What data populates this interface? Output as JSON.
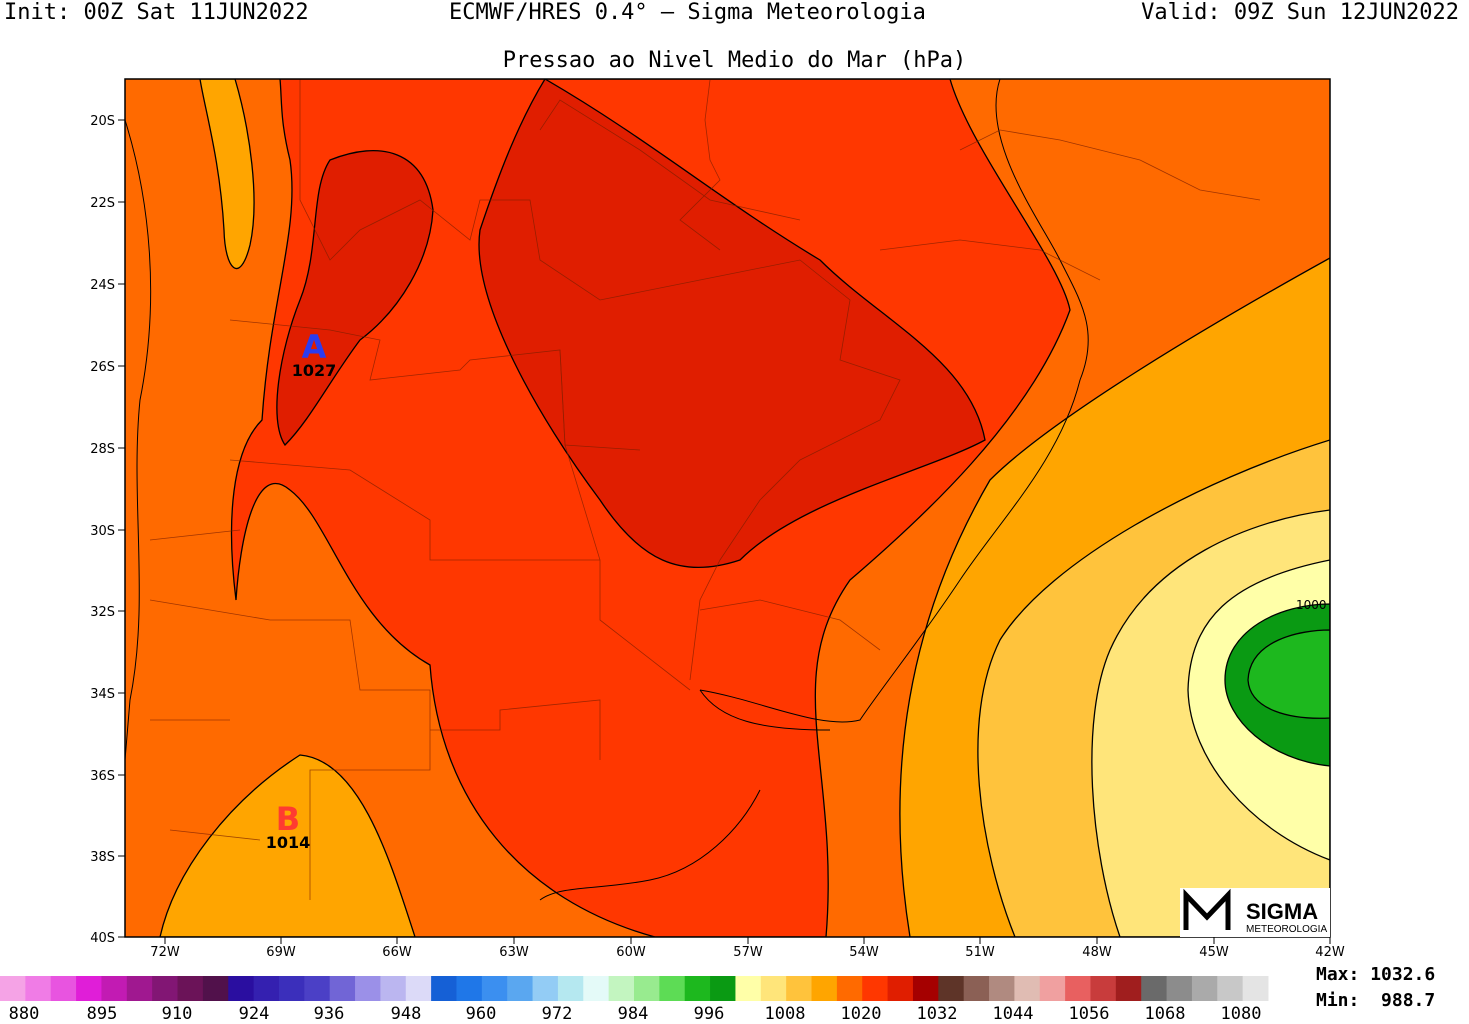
{
  "header": {
    "init": "Init: 00Z Sat 11JUN2022",
    "model": "ECMWF/HRES 0.4° – Sigma Meteorologia",
    "valid": "Valid: 09Z Sun 12JUN2022",
    "subtitle": "Pressao ao Nivel Medio do Mar (hPa)"
  },
  "axes": {
    "lat_labels": [
      "20S",
      "22S",
      "24S",
      "26S",
      "28S",
      "30S",
      "32S",
      "34S",
      "36S",
      "38S",
      "40S"
    ],
    "lon_labels": [
      "72W",
      "69W",
      "66W",
      "63W",
      "60W",
      "57W",
      "54W",
      "51W",
      "48W",
      "45W",
      "42W"
    ]
  },
  "markers": {
    "high": {
      "letter": "A",
      "value": "1027",
      "color": "#2b3cf0"
    },
    "low": {
      "letter": "B",
      "value": "1014",
      "color": "#ff3b30"
    },
    "contour_label": "1000"
  },
  "logo": {
    "big": "SIGMA",
    "small": "METEOROLOGIA"
  },
  "colorbar": {
    "colors": [
      "#f5a3e6",
      "#f07ce6",
      "#e854e0",
      "#e01ed8",
      "#c21bb3",
      "#a01890",
      "#821674",
      "#6b1358",
      "#51114b",
      "#2a0ea0",
      "#3420b0",
      "#3b2fbb",
      "#4b40c6",
      "#7165d6",
      "#9b90e8",
      "#bbb6f0",
      "#dcdaf8",
      "#1560d6",
      "#1f77e8",
      "#3b8ff0",
      "#5aa7f0",
      "#93ccf5",
      "#b5e8f0",
      "#e4faf8",
      "#c3f5c0",
      "#98eb8f",
      "#5ddc55",
      "#1db81e",
      "#0a9a13",
      "#ffffa8",
      "#ffe57a",
      "#ffc33c",
      "#ffa500",
      "#ff6a00",
      "#ff3700",
      "#e01e00",
      "#a50000",
      "#5e3428",
      "#8b6055",
      "#b08a80",
      "#e0bcb3",
      "#f0a0a0",
      "#e86060",
      "#c83c3c",
      "#a01e1e",
      "#6a6a6a",
      "#8c8c8c",
      "#aaaaaa",
      "#c8c8c8",
      "#e4e4e4"
    ],
    "labels": [
      "880",
      "895",
      "910",
      "924",
      "936",
      "948",
      "960",
      "972",
      "984",
      "996",
      "1008",
      "1020",
      "1032",
      "1044",
      "1056",
      "1068",
      "1080"
    ]
  },
  "stats": {
    "max_label": "Max:",
    "max_value": "1032.6",
    "min_label": "Min:",
    "min_value": "988.7"
  }
}
